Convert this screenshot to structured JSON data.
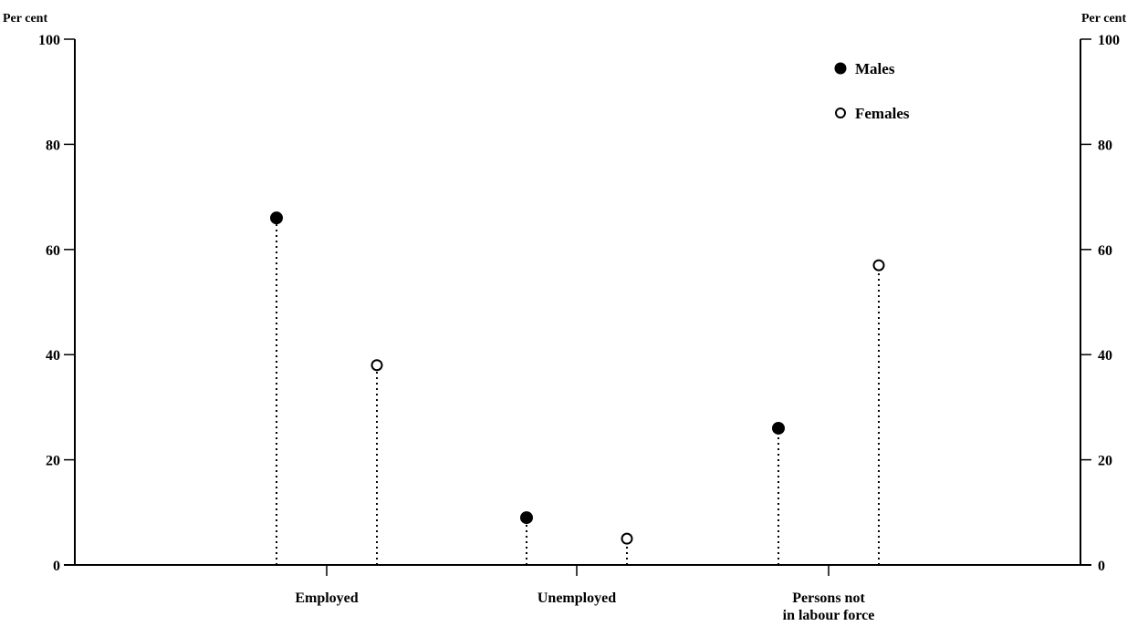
{
  "chart_data": {
    "type": "scatter",
    "categories": [
      "Employed",
      "Unemployed",
      "Persons not in labour force"
    ],
    "category_lines": [
      [
        "Employed"
      ],
      [
        "Unemployed"
      ],
      [
        "Persons not",
        "in labour force"
      ]
    ],
    "series": [
      {
        "name": "Males",
        "marker": "filled-circle",
        "values": [
          66,
          9,
          26
        ]
      },
      {
        "name": "Females",
        "marker": "open-circle",
        "values": [
          38,
          5,
          57
        ]
      }
    ],
    "ylabel_left": "Per cent",
    "ylabel_right": "Per cent",
    "ylim": [
      0,
      100
    ],
    "yticks": [
      0,
      20,
      40,
      60,
      80,
      100
    ],
    "grid": false,
    "drop_lines": "dotted",
    "legend_position": "top-right",
    "colors": {
      "ink": "#000000",
      "background": "#ffffff"
    }
  }
}
